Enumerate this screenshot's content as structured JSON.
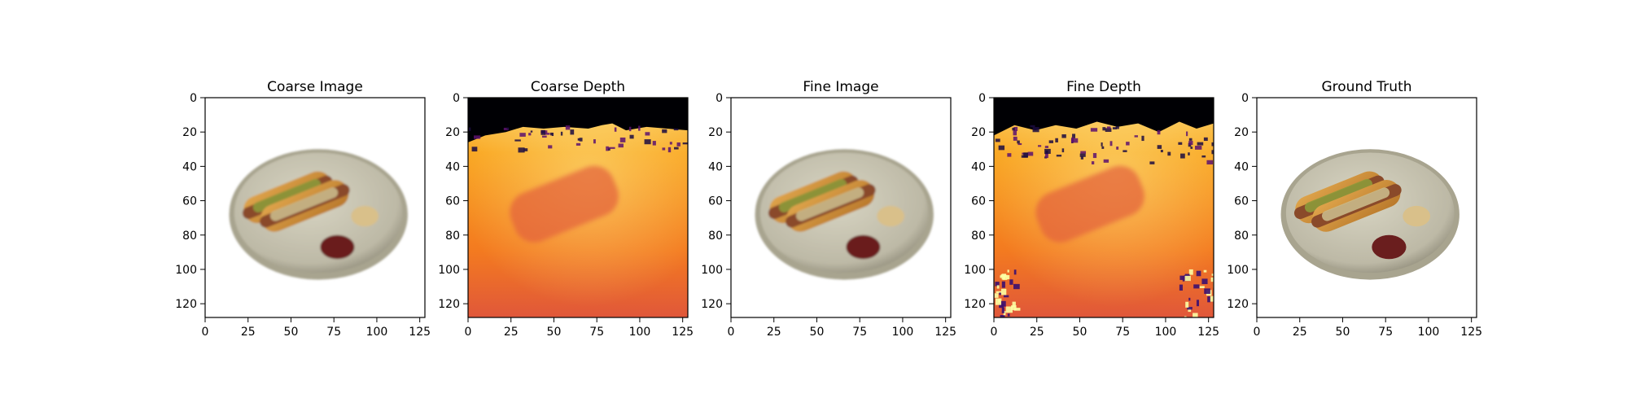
{
  "chart_data": [
    {
      "type": "image",
      "title": "Coarse Image",
      "content": "rgb",
      "x_ticks": [
        0,
        25,
        50,
        75,
        100,
        125
      ],
      "y_ticks": [
        0,
        20,
        40,
        60,
        80,
        100,
        120
      ],
      "xlim": [
        0,
        128
      ],
      "ylim": [
        128,
        0
      ],
      "grid": false
    },
    {
      "type": "heatmap",
      "title": "Coarse Depth",
      "content": "depth",
      "colormap": "inferno",
      "x_ticks": [
        0,
        25,
        50,
        75,
        100,
        125
      ],
      "y_ticks": [
        0,
        20,
        40,
        60,
        80,
        100,
        120
      ],
      "xlim": [
        0,
        128
      ],
      "ylim": [
        128,
        0
      ],
      "grid": false
    },
    {
      "type": "image",
      "title": "Fine Image",
      "content": "rgb",
      "x_ticks": [
        0,
        25,
        50,
        75,
        100,
        125
      ],
      "y_ticks": [
        0,
        20,
        40,
        60,
        80,
        100,
        120
      ],
      "xlim": [
        0,
        128
      ],
      "ylim": [
        128,
        0
      ],
      "grid": false
    },
    {
      "type": "heatmap",
      "title": "Fine Depth",
      "content": "depth",
      "colormap": "inferno",
      "x_ticks": [
        0,
        25,
        50,
        75,
        100,
        125
      ],
      "y_ticks": [
        0,
        20,
        40,
        60,
        80,
        100,
        120
      ],
      "xlim": [
        0,
        128
      ],
      "ylim": [
        128,
        0
      ],
      "grid": false
    },
    {
      "type": "image",
      "title": "Ground Truth",
      "content": "rgb",
      "x_ticks": [
        0,
        25,
        50,
        75,
        100,
        125
      ],
      "y_ticks": [
        0,
        20,
        40,
        60,
        80,
        100,
        120
      ],
      "xlim": [
        0,
        128
      ],
      "ylim": [
        128,
        0
      ],
      "grid": false
    }
  ],
  "colors": {
    "plate": "#c9c6b4",
    "plate_rim": "#a8a48f",
    "bun": "#c98f3a",
    "sausage": "#8a4a2a",
    "relish": "#8c9a3a",
    "ketchup": "#6a1e1e",
    "mustard": "#d9c08a",
    "depth_far": "#000004",
    "depth_mid": "#bc3754",
    "depth_near": "#f98e09",
    "depth_bright": "#fcffa4"
  }
}
